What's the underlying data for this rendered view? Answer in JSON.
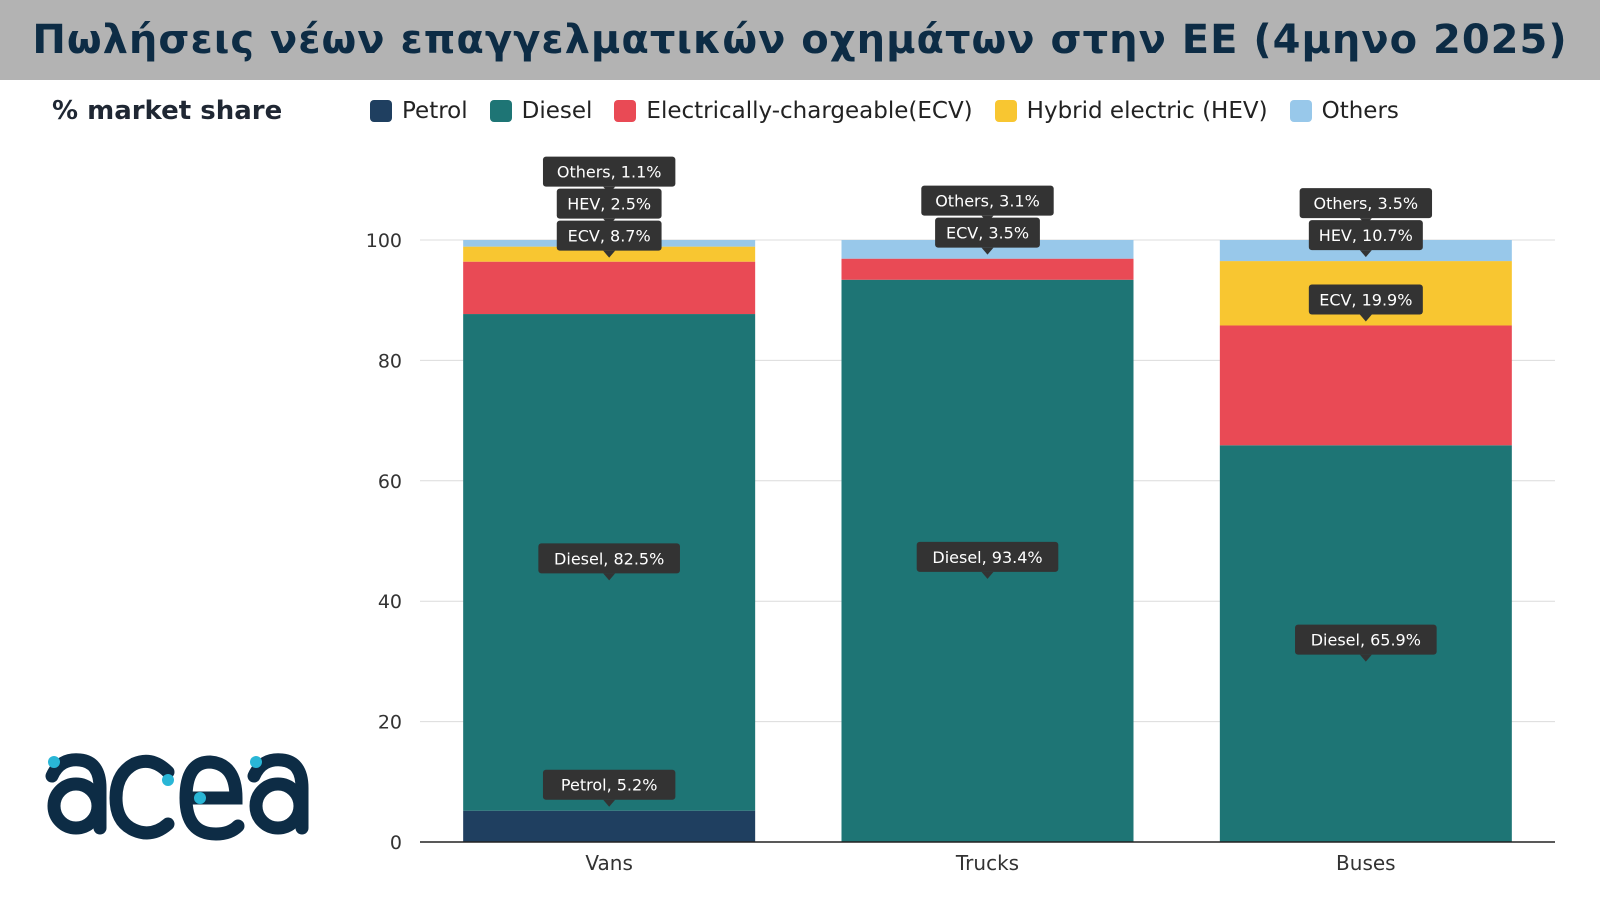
{
  "header": {
    "title": "Πωλήσεις νέων επαγγελματικών οχημάτων στην ΕΕ (4μηνο 2025)"
  },
  "brand": {
    "logo_text": "acea",
    "logo_color": "#0d2c45",
    "dot_color": "#29b6d6"
  },
  "chart_data": {
    "type": "bar",
    "stacked": true,
    "subtitle": "% market share",
    "categories": [
      "Vans",
      "Trucks",
      "Buses"
    ],
    "ylim": [
      0,
      100
    ],
    "yticks": [
      0,
      20,
      40,
      60,
      80,
      100
    ],
    "grid": true,
    "legend_position": "top",
    "series": [
      {
        "name": "Petrol",
        "color": "#1f3f60",
        "values": [
          5.2,
          0,
          0
        ]
      },
      {
        "name": "Diesel",
        "color": "#1e7575",
        "values": [
          82.5,
          93.4,
          65.9
        ]
      },
      {
        "name": "Electrically-chargeable(ECV)",
        "color": "#e94a55",
        "values": [
          8.7,
          3.5,
          19.9
        ]
      },
      {
        "name": "Hybrid electric (HEV)",
        "color": "#f8c631",
        "values": [
          2.5,
          0,
          10.7
        ]
      },
      {
        "name": "Others",
        "color": "#98c8ea",
        "values": [
          1.1,
          3.1,
          3.5
        ]
      }
    ],
    "annotations": [
      {
        "category": "Vans",
        "text": "Others, 1.1%"
      },
      {
        "category": "Vans",
        "text": "HEV, 2.5%"
      },
      {
        "category": "Vans",
        "text": "ECV, 8.7%"
      },
      {
        "category": "Vans",
        "text": "Diesel, 82.5%"
      },
      {
        "category": "Vans",
        "text": "Petrol, 5.2%"
      },
      {
        "category": "Trucks",
        "text": "Others, 3.1%"
      },
      {
        "category": "Trucks",
        "text": "ECV, 3.5%"
      },
      {
        "category": "Trucks",
        "text": "Diesel, 93.4%"
      },
      {
        "category": "Buses",
        "text": "Others, 3.5%"
      },
      {
        "category": "Buses",
        "text": "HEV, 10.7%"
      },
      {
        "category": "Buses",
        "text": "ECV, 19.9%"
      },
      {
        "category": "Buses",
        "text": "Diesel, 65.9%"
      }
    ]
  }
}
